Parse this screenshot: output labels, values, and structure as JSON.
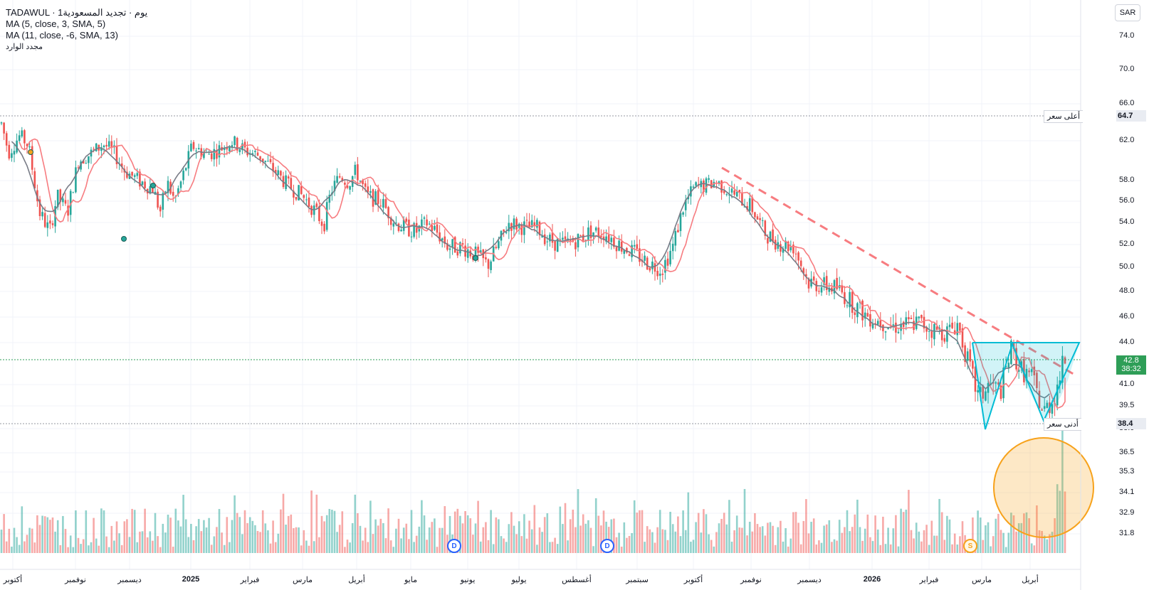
{
  "legend": {
    "line1": "TADAWUL · 1يوم · تجديد المسعودية",
    "line2": "MA (5, close, 3, SMA, 5)",
    "line3": "MA (11, close, -6, SMA, 13)",
    "line4": "مجدد الوارد"
  },
  "currency": "SAR",
  "price_ticks": [
    "74.0",
    "70.0",
    "66.0",
    "62.0",
    "58.0",
    "56.0",
    "54.0",
    "52.0",
    "50.0",
    "48.0",
    "46.0",
    "44.0",
    "41.0",
    "39.5",
    "38.0",
    "36.5",
    "35.3",
    "34.1",
    "32.9",
    "31.8"
  ],
  "time_ticks": [
    {
      "label": "أكتوبر",
      "bold": false
    },
    {
      "label": "نوفمبر",
      "bold": false
    },
    {
      "label": "ديسمبر",
      "bold": false
    },
    {
      "label": "2025",
      "bold": true
    },
    {
      "label": "فبراير",
      "bold": false
    },
    {
      "label": "مارس",
      "bold": false
    },
    {
      "label": "أبريل",
      "bold": false
    },
    {
      "label": "مايو",
      "bold": false
    },
    {
      "label": "يونيو",
      "bold": false
    },
    {
      "label": "يوليو",
      "bold": false
    },
    {
      "label": "أغسطس",
      "bold": false
    },
    {
      "label": "سبتمبر",
      "bold": false
    },
    {
      "label": "أكتوبر",
      "bold": false
    },
    {
      "label": "نوفمبر",
      "bold": false
    },
    {
      "label": "ديسمبر",
      "bold": false
    },
    {
      "label": "2026",
      "bold": true
    },
    {
      "label": "فبراير",
      "bold": false
    },
    {
      "label": "مارس",
      "bold": false
    },
    {
      "label": "أبريل",
      "bold": false
    }
  ],
  "high": {
    "label": "أعلى سعر",
    "value": "64.7"
  },
  "low": {
    "label": "أدنى سعر",
    "value": "38.4"
  },
  "last_price": {
    "value": "42.8",
    "countdown": "38:32"
  },
  "markers": {
    "dividend": "D",
    "split": "S"
  },
  "colors": {
    "up": "#26a69a",
    "down": "#ef5350",
    "ma_fast": "#f77c80",
    "ma_slow": "#787b86",
    "trendline": "#f77c80",
    "pattern": "#00bcd4",
    "circle": "#f7a21b"
  },
  "chart_data": {
    "type": "candlestick",
    "price_range": [
      31.8,
      74.0
    ],
    "price_keypoints": [
      [
        0,
        64.5
      ],
      [
        12,
        60.8
      ],
      [
        28,
        62.6
      ],
      [
        40,
        61.5
      ],
      [
        55,
        55.0
      ],
      [
        70,
        53.2
      ],
      [
        80,
        56.5
      ],
      [
        95,
        55.0
      ],
      [
        110,
        60.0
      ],
      [
        130,
        60.8
      ],
      [
        145,
        61.7
      ],
      [
        160,
        60.8
      ],
      [
        175,
        59.0
      ],
      [
        195,
        58.0
      ],
      [
        215,
        57.2
      ],
      [
        225,
        55.0
      ],
      [
        235,
        57.8
      ],
      [
        245,
        56.0
      ],
      [
        255,
        58.0
      ],
      [
        270,
        61.5
      ],
      [
        290,
        60.6
      ],
      [
        305,
        61.0
      ],
      [
        325,
        62.0
      ],
      [
        345,
        61.0
      ],
      [
        365,
        60.5
      ],
      [
        385,
        59.0
      ],
      [
        405,
        57.5
      ],
      [
        425,
        56.5
      ],
      [
        440,
        55.3
      ],
      [
        455,
        53.8
      ],
      [
        465,
        57.0
      ],
      [
        478,
        58.5
      ],
      [
        490,
        57.8
      ],
      [
        500,
        59.0
      ],
      [
        515,
        56.5
      ],
      [
        535,
        56.0
      ],
      [
        555,
        54.0
      ],
      [
        570,
        53.5
      ],
      [
        585,
        53.2
      ],
      [
        600,
        54.0
      ],
      [
        615,
        53.0
      ],
      [
        630,
        51.8
      ],
      [
        650,
        51.8
      ],
      [
        670,
        51.0
      ],
      [
        685,
        50.2
      ],
      [
        700,
        52.0
      ],
      [
        715,
        54.0
      ],
      [
        735,
        53.6
      ],
      [
        755,
        53.5
      ],
      [
        770,
        52.4
      ],
      [
        790,
        52.0
      ],
      [
        810,
        52.4
      ],
      [
        830,
        53.2
      ],
      [
        850,
        53.0
      ],
      [
        870,
        52.0
      ],
      [
        890,
        51.3
      ],
      [
        910,
        50.4
      ],
      [
        930,
        49.9
      ],
      [
        945,
        51.8
      ],
      [
        960,
        55.5
      ],
      [
        975,
        57.3
      ],
      [
        990,
        57.5
      ],
      [
        1005,
        57.9
      ],
      [
        1020,
        57.2
      ],
      [
        1035,
        56.5
      ],
      [
        1055,
        55.5
      ],
      [
        1075,
        53.0
      ],
      [
        1095,
        52.1
      ],
      [
        1115,
        51.8
      ],
      [
        1135,
        48.8
      ],
      [
        1155,
        48.5
      ],
      [
        1175,
        48.3
      ],
      [
        1195,
        47.2
      ],
      [
        1215,
        46.2
      ],
      [
        1235,
        45.7
      ],
      [
        1255,
        45.3
      ],
      [
        1275,
        45.4
      ],
      [
        1290,
        45.6
      ],
      [
        1310,
        45.0
      ],
      [
        1330,
        44.8
      ],
      [
        1345,
        45.5
      ],
      [
        1360,
        42.5
      ],
      [
        1375,
        40.0
      ],
      [
        1390,
        41.0
      ],
      [
        1405,
        40.5
      ],
      [
        1420,
        43.5
      ],
      [
        1435,
        42.0
      ],
      [
        1450,
        41.5
      ],
      [
        1465,
        39.0
      ],
      [
        1480,
        40.0
      ],
      [
        1495,
        42.8
      ]
    ]
  }
}
